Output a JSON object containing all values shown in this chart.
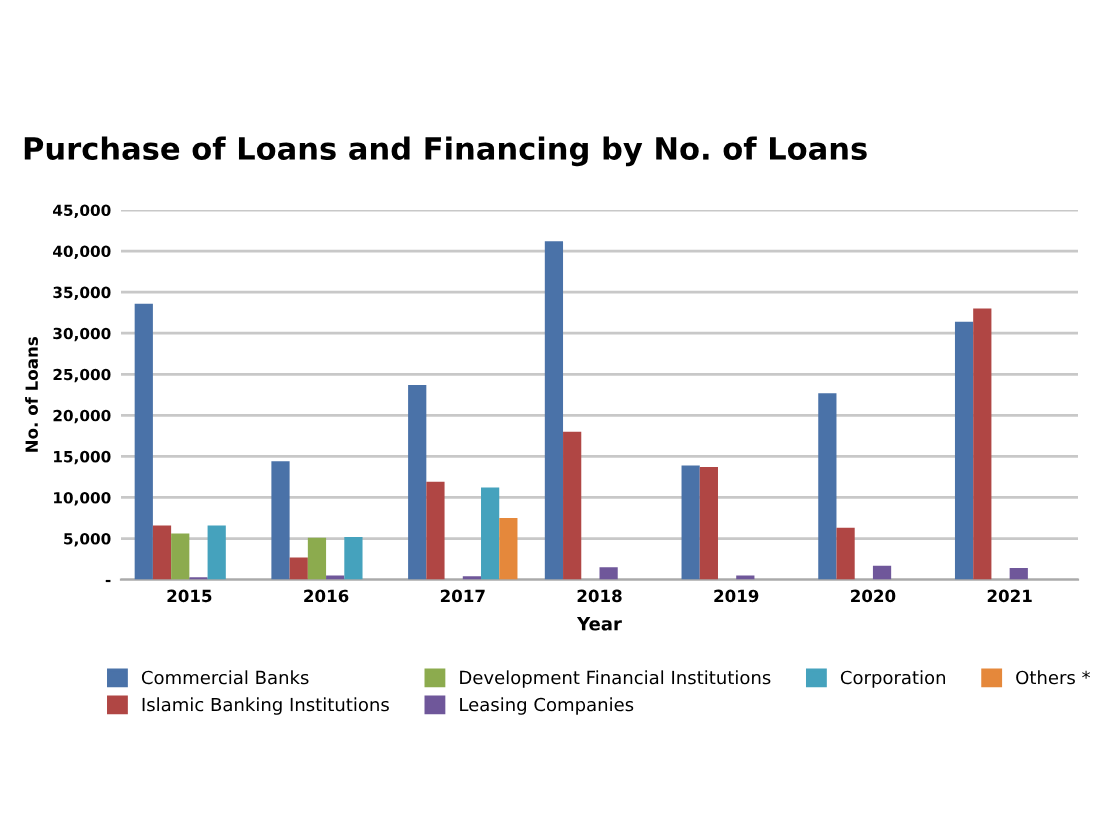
{
  "chart_data": {
    "type": "bar",
    "title": "Purchase of Loans and Financing by No. of Loans",
    "xlabel": "Year",
    "ylabel": "No. of Loans",
    "categories": [
      "2015",
      "2016",
      "2017",
      "2018",
      "2019",
      "2020",
      "2021"
    ],
    "series": [
      {
        "name": "Commercial Banks",
        "color": "#4a72a8",
        "values": [
          33600,
          14400,
          23700,
          41200,
          13900,
          22700,
          31400
        ]
      },
      {
        "name": "Islamic Banking Institutions",
        "color": "#b04644",
        "values": [
          6600,
          2700,
          11900,
          18000,
          13700,
          6300,
          33000
        ]
      },
      {
        "name": "Development Financial Institutions",
        "color": "#8cab4e",
        "values": [
          5600,
          5100,
          null,
          null,
          null,
          null,
          null
        ]
      },
      {
        "name": "Leasing Companies",
        "color": "#6f579a",
        "values": [
          300,
          500,
          400,
          1500,
          500,
          1700,
          1400
        ]
      },
      {
        "name": "Corporation",
        "color": "#45a2bd",
        "values": [
          6600,
          5200,
          11200,
          null,
          null,
          null,
          null
        ]
      },
      {
        "name": "Others *",
        "color": "#e5883b",
        "values": [
          null,
          null,
          7500,
          null,
          null,
          null,
          null
        ]
      }
    ],
    "ylim": [
      0,
      45000
    ],
    "yticks": [
      {
        "value": 0,
        "label": "-"
      },
      {
        "value": 5000,
        "label": "5,000"
      },
      {
        "value": 10000,
        "label": "10,000"
      },
      {
        "value": 15000,
        "label": "15,000"
      },
      {
        "value": 20000,
        "label": "20,000"
      },
      {
        "value": 25000,
        "label": "25,000"
      },
      {
        "value": 30000,
        "label": "30,000"
      },
      {
        "value": 35000,
        "label": "35,000"
      },
      {
        "value": 40000,
        "label": "40,000"
      },
      {
        "value": 45000,
        "label": "45,000"
      }
    ],
    "grid": "y",
    "legend": "bottom"
  }
}
